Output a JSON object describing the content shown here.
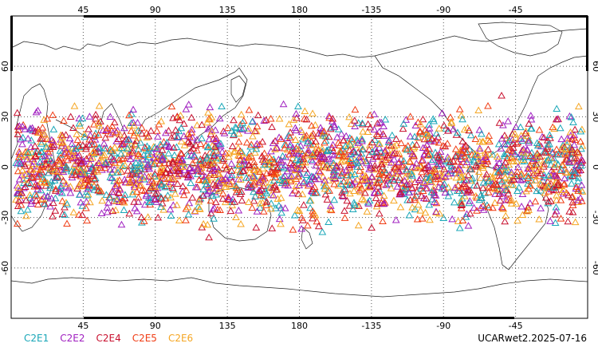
{
  "map": {
    "longitude_ticks": [
      "45",
      "90",
      "135",
      "180",
      "-135",
      "-90",
      "-45"
    ],
    "latitude_ticks": [
      "60",
      "30",
      "0",
      "-30",
      "-60"
    ],
    "lon_range": [
      0,
      360
    ],
    "lat_range": [
      -90,
      90
    ],
    "projection": "cylindrical-equidistant",
    "grid": "dotted",
    "observation_marker": "open triangle",
    "observation_band_lat": [
      -45,
      45
    ]
  },
  "legend": [
    {
      "label": "C2E1",
      "color": "#1aa7b8"
    },
    {
      "label": "C2E2",
      "color": "#a020c0"
    },
    {
      "label": "C2E4",
      "color": "#c8102e"
    },
    {
      "label": "C2E5",
      "color": "#f03c14"
    },
    {
      "label": "C2E6",
      "color": "#f5a623"
    }
  ],
  "source_label": "UCARwet2.2025-07-16"
}
